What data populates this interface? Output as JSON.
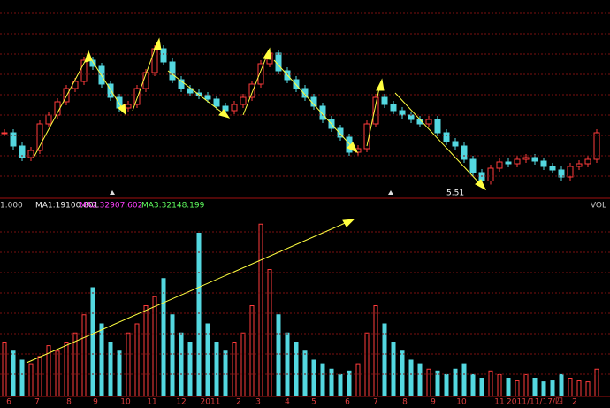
{
  "chart_data": {
    "type": "candlestick",
    "price": {
      "values": [
        6.6,
        6.3,
        6.04,
        6.2,
        6.8,
        7.0,
        7.3,
        7.6,
        7.76,
        8.24,
        8.1,
        7.7,
        7.4,
        7.16,
        7.24,
        7.6,
        7.96,
        8.5,
        8.2,
        7.8,
        7.6,
        7.5,
        7.44,
        7.36,
        7.2,
        7.1,
        7.24,
        7.4,
        7.7,
        8.16,
        8.4,
        8.0,
        7.8,
        7.6,
        7.4,
        7.2,
        6.9,
        6.7,
        6.5,
        6.16,
        6.24,
        6.8,
        7.4,
        7.24,
        7.1,
        7.0,
        6.9,
        6.8,
        6.9,
        6.6,
        6.4,
        6.3,
        6.0,
        5.7,
        5.51,
        5.8,
        5.94,
        5.9,
        6.0,
        6.04,
        5.96,
        5.84,
        5.76,
        5.6,
        5.84,
        5.9,
        6.0,
        6.6
      ],
      "ylim": [
        5.3,
        8.8
      ],
      "up_color": "#ff3b3b",
      "down_color": "#54d8e0",
      "low_label": "5.51"
    },
    "volume": {
      "values": [
        30,
        25,
        20,
        18,
        22,
        28,
        25,
        30,
        35,
        45,
        60,
        40,
        30,
        25,
        35,
        40,
        50,
        55,
        65,
        45,
        35,
        30,
        90,
        40,
        30,
        25,
        30,
        35,
        50,
        95,
        70,
        45,
        35,
        30,
        25,
        20,
        18,
        15,
        12,
        14,
        18,
        35,
        50,
        40,
        30,
        25,
        20,
        18,
        15,
        14,
        12,
        15,
        18,
        12,
        10,
        14,
        12,
        10,
        9,
        12,
        10,
        8,
        9,
        12,
        10,
        9,
        8,
        15
      ],
      "ylim": [
        0,
        100
      ]
    },
    "legend": [
      {
        "text": "1.000",
        "color": "#d0d0d0"
      },
      {
        "text": "MA1:19100.801",
        "color": "#f0f0f0"
      },
      {
        "text": "MA2:32907.602",
        "color": "#ff40ff"
      },
      {
        "text": "MA3:32148.199",
        "color": "#60ff60"
      }
    ],
    "indicator": "VOL",
    "x_labels": [
      "6",
      "7",
      "8",
      "9",
      "10",
      "11",
      "12",
      "2011",
      "2",
      "3",
      "4",
      "5",
      "6",
      "7",
      "8",
      "9",
      "10",
      "11",
      "2011/11/17/四",
      "2"
    ],
    "grid": true
  }
}
